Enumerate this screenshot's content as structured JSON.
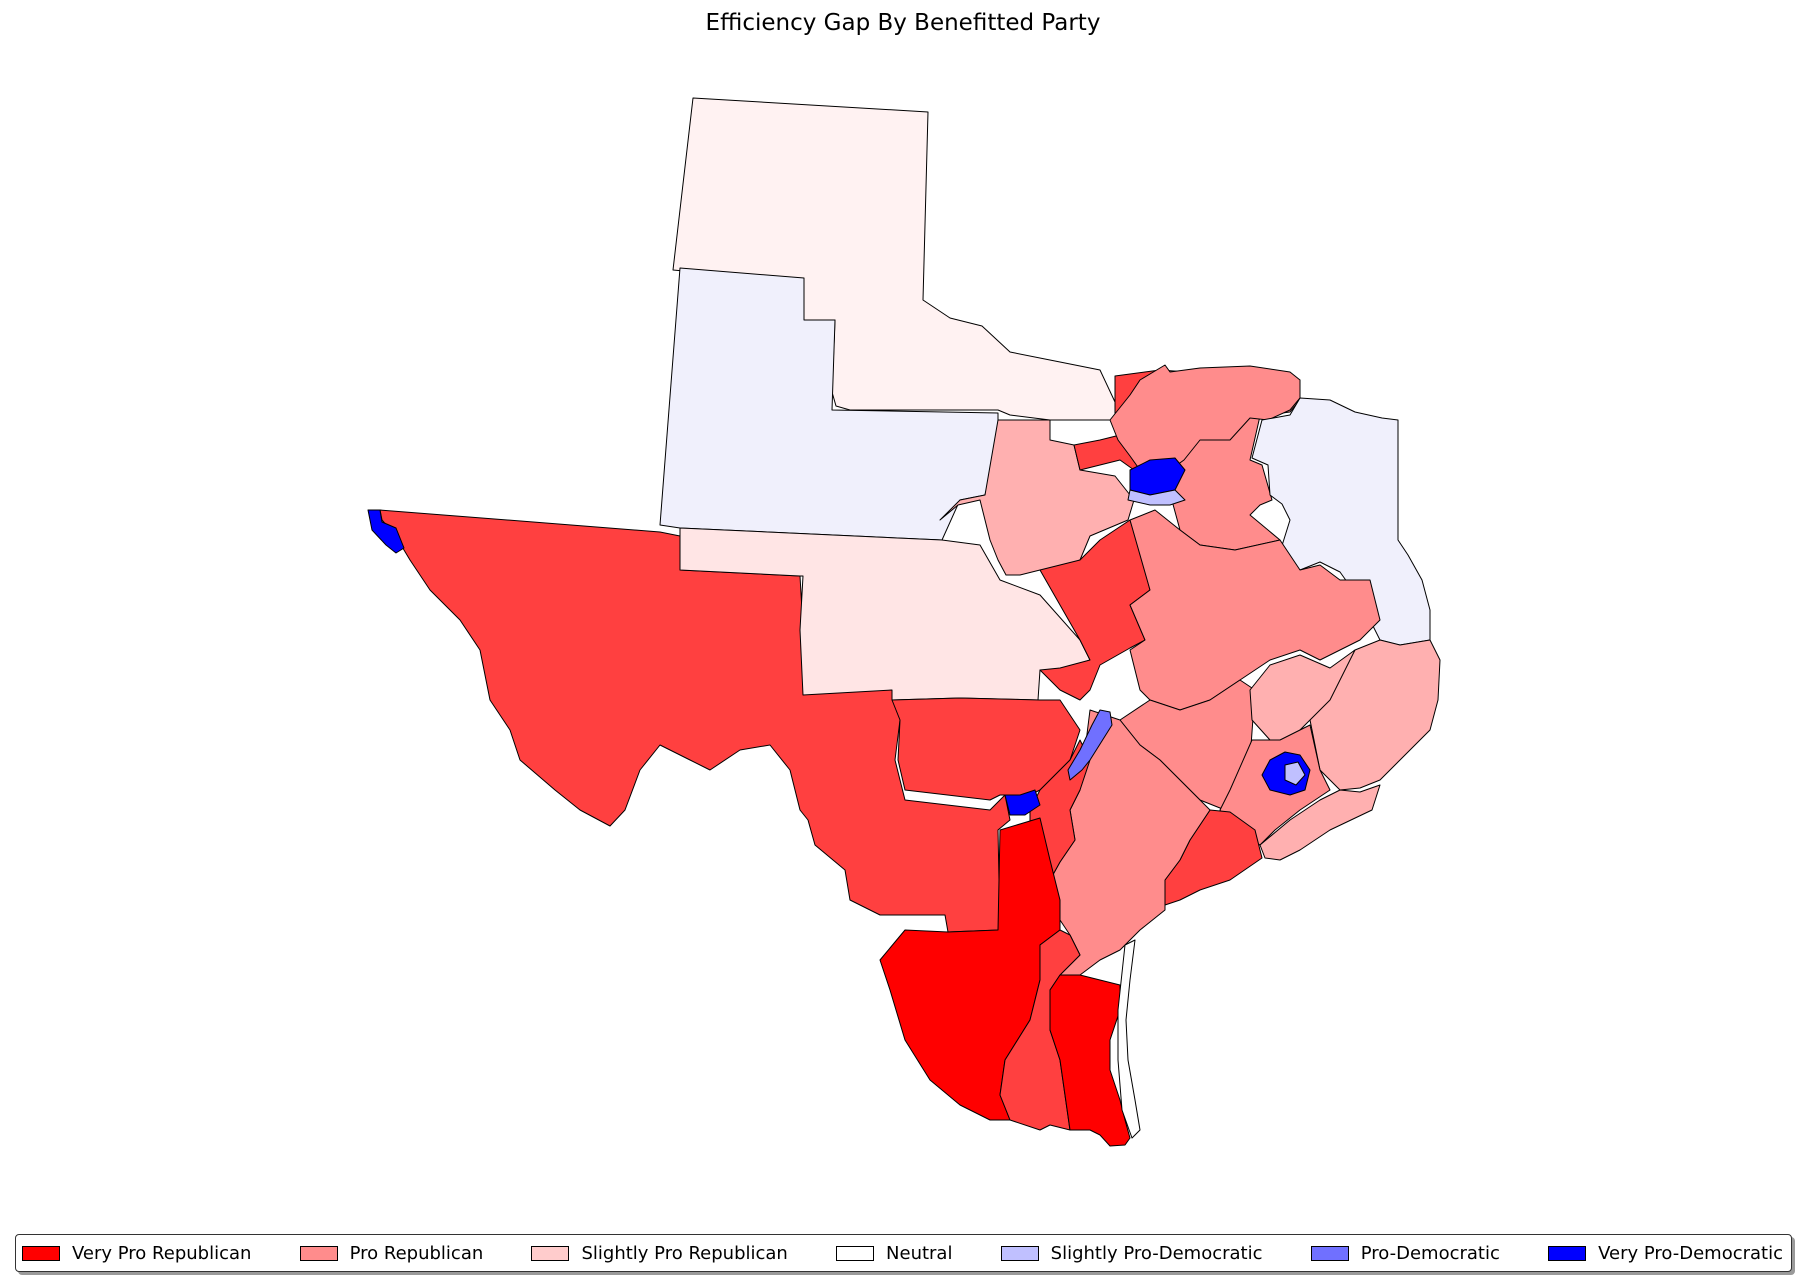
{
  "title": "Efficiency Gap By Benefitted Party",
  "colors": {
    "very_pro_republican": "#ff0000",
    "pro_republican_strong": "#ff4040",
    "pro_republican": "#ff8c8c",
    "pro_republican_light": "#ffb0b0",
    "slightly_pro_republican": "#ffe5e5",
    "slightly_pro_republican_faint": "#fff2f2",
    "neutral": "#ffffff",
    "slightly_pro_democratic_faint": "#f0f0fc",
    "slightly_pro_democratic": "#c0c0ff",
    "pro_democratic": "#7070ff",
    "very_pro_democratic": "#0000ff",
    "boundary": "#000000"
  },
  "legend": [
    {
      "label": "Very Pro Republican",
      "color": "#ff0000"
    },
    {
      "label": "Pro Republican",
      "color": "#ff8c8c"
    },
    {
      "label": "Slightly Pro Republican",
      "color": "#ffcccc"
    },
    {
      "label": "Neutral",
      "color": "#ffffff"
    },
    {
      "label": "Slightly Pro-Democratic",
      "color": "#c0c0ff"
    },
    {
      "label": "Pro-Democratic",
      "color": "#7070ff"
    },
    {
      "label": "Very Pro-Democratic",
      "color": "#0000ff"
    }
  ]
}
